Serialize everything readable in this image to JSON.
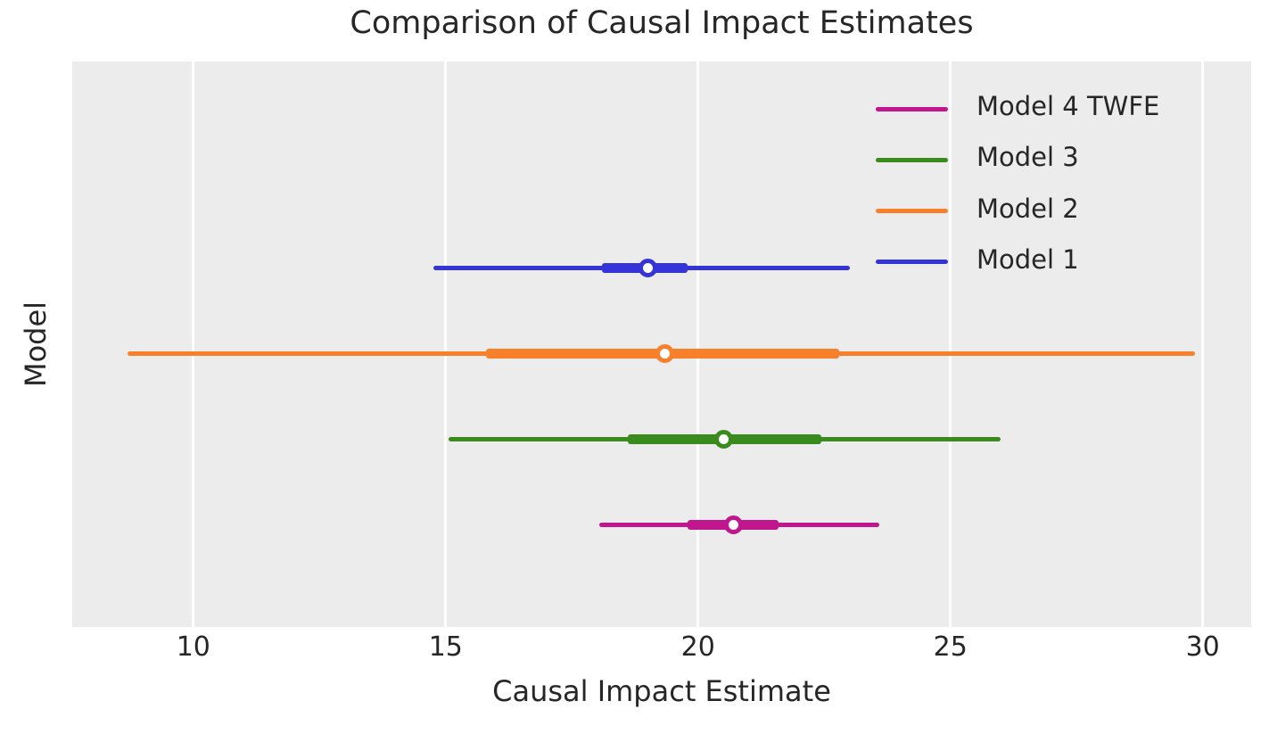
{
  "title": "Comparison of Causal Impact Estimates",
  "axes": {
    "xlabel": "Causal Impact Estimate",
    "ylabel": "Model",
    "x_tick_labels": [
      "10",
      "15",
      "20",
      "25",
      "30"
    ],
    "y_tick_labels": []
  },
  "colors": {
    "figure_bg": "#ffffff",
    "plot_bg": "#ececec",
    "grid": "#ffffff",
    "text": "#262626",
    "model1": "#3534d8",
    "model2": "#f8802a",
    "model3": "#3a8b1e",
    "model4": "#c0168e"
  },
  "legend": {
    "position": "upper right",
    "entries": [
      {
        "label": "Model 4 TWFE",
        "color": "#c0168e"
      },
      {
        "label": "Model 3",
        "color": "#3a8b1e"
      },
      {
        "label": "Model 2",
        "color": "#f8802a"
      },
      {
        "label": "Model 1",
        "color": "#3534d8"
      }
    ]
  },
  "chart_data": {
    "type": "errorbar-forest",
    "title": "Comparison of Causal Impact Estimates",
    "xlabel": "Causal Impact Estimate",
    "ylabel": "Model",
    "xlim": [
      7.6,
      30.96
    ],
    "x_ticks": [
      10,
      15,
      20,
      25,
      30
    ],
    "grid": "vertical-only, white gridlines on light-gray panel, no tick marks",
    "legend_position": "upper right, no frame",
    "marker_style": "open circle, white face, colored edge",
    "series": [
      {
        "name": "Model 1",
        "color": "#3534d8",
        "estimate": 19.0,
        "ci_inner": [
          18.1,
          19.8
        ],
        "ci_outer": [
          14.75,
          23.0
        ]
      },
      {
        "name": "Model 2",
        "color": "#f8802a",
        "estimate": 19.35,
        "ci_inner": [
          15.8,
          22.8
        ],
        "ci_outer": [
          8.7,
          29.85
        ]
      },
      {
        "name": "Model 3",
        "color": "#3a8b1e",
        "estimate": 20.5,
        "ci_inner": [
          18.6,
          22.45
        ],
        "ci_outer": [
          15.05,
          26.0
        ]
      },
      {
        "name": "Model 4 TWFE",
        "color": "#c0168e",
        "estimate": 20.7,
        "ci_inner": [
          19.8,
          21.6
        ],
        "ci_outer": [
          18.05,
          23.6
        ]
      }
    ]
  }
}
